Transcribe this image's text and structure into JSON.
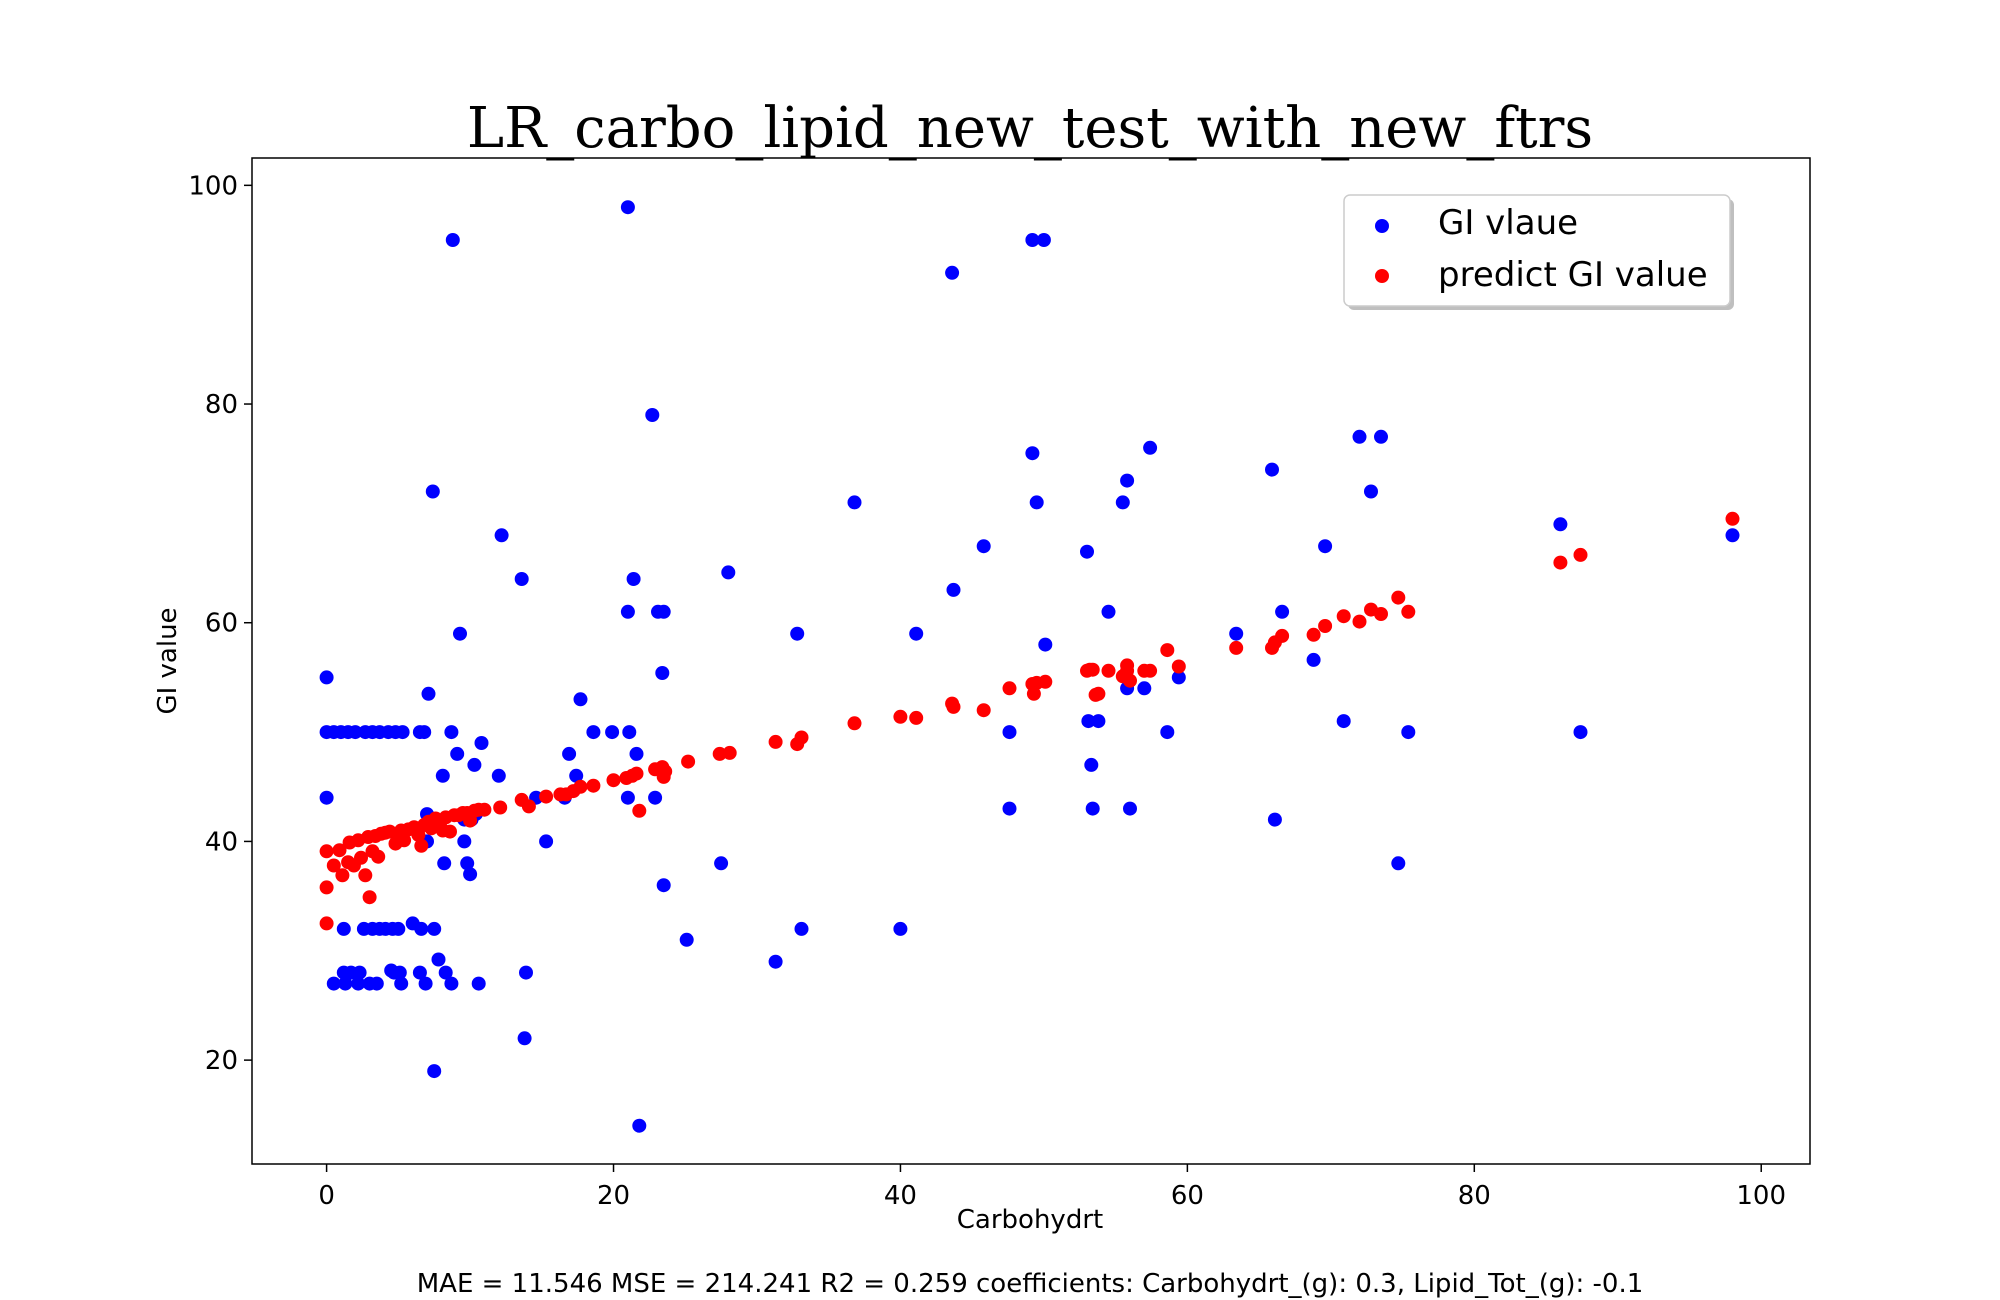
{
  "chart_data": {
    "type": "scatter",
    "title": "LR_carbo_lipid_new_test_with_new_ftrs",
    "xlabel": "Carbohydrt",
    "ylabel": "GI value",
    "xlim": [
      -5.2,
      103.4
    ],
    "ylim": [
      10.5,
      102.5
    ],
    "xticks": [
      0,
      20,
      40,
      60,
      80,
      100
    ],
    "yticks": [
      20,
      40,
      60,
      80,
      100
    ],
    "grid": false,
    "legend_position": "top-right",
    "series": [
      {
        "name": "GI vlaue",
        "color": "#0000ff",
        "points": [
          [
            0,
            55
          ],
          [
            0,
            44
          ],
          [
            0,
            50
          ],
          [
            0.5,
            50
          ],
          [
            1,
            50
          ],
          [
            1.5,
            50
          ],
          [
            2,
            50
          ],
          [
            2.7,
            50
          ],
          [
            3.2,
            50
          ],
          [
            3.7,
            50
          ],
          [
            4.3,
            50
          ],
          [
            4.8,
            50
          ],
          [
            5.3,
            50
          ],
          [
            6.5,
            50
          ],
          [
            6.8,
            50
          ],
          [
            0.5,
            27
          ],
          [
            1.3,
            27
          ],
          [
            2.2,
            27
          ],
          [
            3,
            27
          ],
          [
            3.5,
            27
          ],
          [
            5.2,
            27
          ],
          [
            6.9,
            27
          ],
          [
            8.7,
            27
          ],
          [
            10.6,
            27
          ],
          [
            1.2,
            28
          ],
          [
            1.7,
            28
          ],
          [
            2.3,
            28
          ],
          [
            4.5,
            28.2
          ],
          [
            4.7,
            28
          ],
          [
            5.1,
            28
          ],
          [
            6.5,
            28
          ],
          [
            8.3,
            28
          ],
          [
            13.9,
            28
          ],
          [
            1.2,
            32
          ],
          [
            2.6,
            32
          ],
          [
            3.2,
            32
          ],
          [
            3.7,
            32
          ],
          [
            4.1,
            32
          ],
          [
            4.6,
            32
          ],
          [
            5,
            32
          ],
          [
            6,
            32.5
          ],
          [
            6.6,
            32
          ],
          [
            7.5,
            32
          ],
          [
            7.5,
            19
          ],
          [
            7.8,
            29.2
          ],
          [
            7.4,
            72
          ],
          [
            8.8,
            95
          ],
          [
            7.1,
            53.5
          ],
          [
            8.7,
            50
          ],
          [
            9.1,
            48
          ],
          [
            9.3,
            59
          ],
          [
            8.1,
            46
          ],
          [
            8.2,
            38
          ],
          [
            7.5,
            42
          ],
          [
            7,
            42.5
          ],
          [
            9.6,
            42
          ],
          [
            10.1,
            42
          ],
          [
            10.4,
            42.5
          ],
          [
            9.8,
            38
          ],
          [
            10,
            37
          ],
          [
            9.6,
            40
          ],
          [
            7,
            40
          ],
          [
            10.3,
            47
          ],
          [
            10.8,
            49
          ],
          [
            12,
            46
          ],
          [
            12.2,
            68
          ],
          [
            13.6,
            64
          ],
          [
            13.8,
            22
          ],
          [
            14.6,
            44
          ],
          [
            15.3,
            40
          ],
          [
            16.6,
            44
          ],
          [
            16.9,
            48
          ],
          [
            17.4,
            46
          ],
          [
            17.7,
            53
          ],
          [
            18.6,
            50
          ],
          [
            19.9,
            50
          ],
          [
            21.1,
            50
          ],
          [
            21,
            61
          ],
          [
            21.4,
            64
          ],
          [
            21,
            98
          ],
          [
            21.6,
            48
          ],
          [
            21,
            44
          ],
          [
            21.8,
            14
          ],
          [
            22.7,
            79
          ],
          [
            22.9,
            44
          ],
          [
            23.1,
            61
          ],
          [
            23.4,
            55.4
          ],
          [
            23.5,
            61
          ],
          [
            23.5,
            36
          ],
          [
            25.1,
            31
          ],
          [
            27.5,
            38
          ],
          [
            28,
            64.6
          ],
          [
            31.3,
            29
          ],
          [
            32.8,
            59
          ],
          [
            33.1,
            32
          ],
          [
            36.8,
            71
          ],
          [
            40,
            32
          ],
          [
            41.1,
            59
          ],
          [
            43.6,
            92
          ],
          [
            43.7,
            63
          ],
          [
            45.8,
            67
          ],
          [
            47.6,
            50
          ],
          [
            47.6,
            43
          ],
          [
            49.2,
            95
          ],
          [
            50,
            95
          ],
          [
            49.2,
            75.5
          ],
          [
            49.5,
            71
          ],
          [
            50.1,
            58
          ],
          [
            53,
            66.5
          ],
          [
            53.1,
            51
          ],
          [
            53.3,
            47
          ],
          [
            53.4,
            43
          ],
          [
            53.8,
            51
          ],
          [
            54.5,
            61
          ],
          [
            55.5,
            71
          ],
          [
            55.8,
            73
          ],
          [
            56,
            43
          ],
          [
            55.8,
            54
          ],
          [
            57,
            54
          ],
          [
            57.4,
            76
          ],
          [
            58.6,
            50
          ],
          [
            59.4,
            55
          ],
          [
            63.4,
            59
          ],
          [
            65.9,
            74
          ],
          [
            66.1,
            42
          ],
          [
            66.6,
            61
          ],
          [
            68.8,
            56.6
          ],
          [
            69.6,
            67
          ],
          [
            70.9,
            51
          ],
          [
            72,
            77
          ],
          [
            72.8,
            72
          ],
          [
            73.5,
            77
          ],
          [
            74.7,
            38
          ],
          [
            75.4,
            50
          ],
          [
            86,
            69
          ],
          [
            87.4,
            50
          ],
          [
            98,
            68
          ]
        ]
      },
      {
        "name": "predict GI value",
        "color": "#ff0000",
        "points": [
          [
            0,
            39.1
          ],
          [
            0,
            35.8
          ],
          [
            0,
            32.5
          ],
          [
            0.5,
            37.8
          ],
          [
            0.9,
            39.2
          ],
          [
            1.1,
            36.9
          ],
          [
            1.5,
            38.1
          ],
          [
            1.6,
            39.9
          ],
          [
            1.9,
            37.8
          ],
          [
            2.2,
            40.1
          ],
          [
            2.4,
            38.5
          ],
          [
            2.7,
            36.9
          ],
          [
            2.9,
            40.4
          ],
          [
            3,
            34.9
          ],
          [
            3.2,
            39.1
          ],
          [
            3.4,
            40.5
          ],
          [
            3.6,
            38.6
          ],
          [
            3.8,
            40.7
          ],
          [
            4.1,
            40.8
          ],
          [
            4.4,
            40.9
          ],
          [
            4.8,
            39.8
          ],
          [
            5,
            40.2
          ],
          [
            5.2,
            41.0
          ],
          [
            5.4,
            40.1
          ],
          [
            5.7,
            41.1
          ],
          [
            6.1,
            41.3
          ],
          [
            6.4,
            40.6
          ],
          [
            6.6,
            39.6
          ],
          [
            6.8,
            41.5
          ],
          [
            7.1,
            41.8
          ],
          [
            7.3,
            41.2
          ],
          [
            7.6,
            42.1
          ],
          [
            7.9,
            41.6
          ],
          [
            8.1,
            41.0
          ],
          [
            8.3,
            42.2
          ],
          [
            8.6,
            40.9
          ],
          [
            8.9,
            42.4
          ],
          [
            9.2,
            42.4
          ],
          [
            9.5,
            42.6
          ],
          [
            9.8,
            42.6
          ],
          [
            10,
            41.9
          ],
          [
            10.3,
            42.8
          ],
          [
            10.6,
            42.9
          ],
          [
            11,
            42.9
          ],
          [
            12.1,
            43.1
          ],
          [
            13.6,
            43.8
          ],
          [
            14.1,
            43.2
          ],
          [
            15.3,
            44.1
          ],
          [
            16.3,
            44.3
          ],
          [
            16.7,
            44.3
          ],
          [
            17.2,
            44.6
          ],
          [
            17.7,
            45.0
          ],
          [
            18.6,
            45.1
          ],
          [
            20,
            45.6
          ],
          [
            20.9,
            45.8
          ],
          [
            21.3,
            46.0
          ],
          [
            21.6,
            46.2
          ],
          [
            21.8,
            42.8
          ],
          [
            22.9,
            46.6
          ],
          [
            23.4,
            46.8
          ],
          [
            23.5,
            45.9
          ],
          [
            23.6,
            46.4
          ],
          [
            25.2,
            47.3
          ],
          [
            27.4,
            48.0
          ],
          [
            28.1,
            48.1
          ],
          [
            31.3,
            49.1
          ],
          [
            32.8,
            48.9
          ],
          [
            33.1,
            49.5
          ],
          [
            36.8,
            50.8
          ],
          [
            40,
            51.4
          ],
          [
            41.1,
            51.3
          ],
          [
            43.6,
            52.6
          ],
          [
            43.7,
            52.3
          ],
          [
            45.8,
            52.0
          ],
          [
            47.6,
            54.0
          ],
          [
            49.2,
            54.4
          ],
          [
            49.3,
            53.5
          ],
          [
            49.5,
            54.5
          ],
          [
            50.1,
            54.6
          ],
          [
            53,
            55.6
          ],
          [
            53.2,
            55.7
          ],
          [
            53.4,
            55.7
          ],
          [
            53.6,
            53.4
          ],
          [
            53.8,
            53.5
          ],
          [
            54.5,
            55.6
          ],
          [
            55.5,
            55.1
          ],
          [
            55.8,
            56.1
          ],
          [
            55.8,
            55.6
          ],
          [
            56,
            54.7
          ],
          [
            57,
            55.6
          ],
          [
            57.4,
            55.6
          ],
          [
            58.6,
            57.5
          ],
          [
            59.4,
            56.0
          ],
          [
            63.4,
            57.7
          ],
          [
            65.9,
            57.7
          ],
          [
            66.1,
            58.2
          ],
          [
            66.6,
            58.8
          ],
          [
            68.8,
            58.9
          ],
          [
            69.6,
            59.7
          ],
          [
            70.9,
            60.6
          ],
          [
            72,
            60.1
          ],
          [
            72.8,
            61.2
          ],
          [
            73.5,
            60.8
          ],
          [
            74.7,
            62.3
          ],
          [
            75.4,
            61.0
          ],
          [
            86,
            65.5
          ],
          [
            87.4,
            66.2
          ],
          [
            98,
            69.5
          ]
        ]
      }
    ],
    "footer": "MAE = 11.546 MSE = 214.241 R2 = 0.259 coefficients: Carbohydrt_(g): 0.3, Lipid_Tot_(g): -0.1"
  }
}
